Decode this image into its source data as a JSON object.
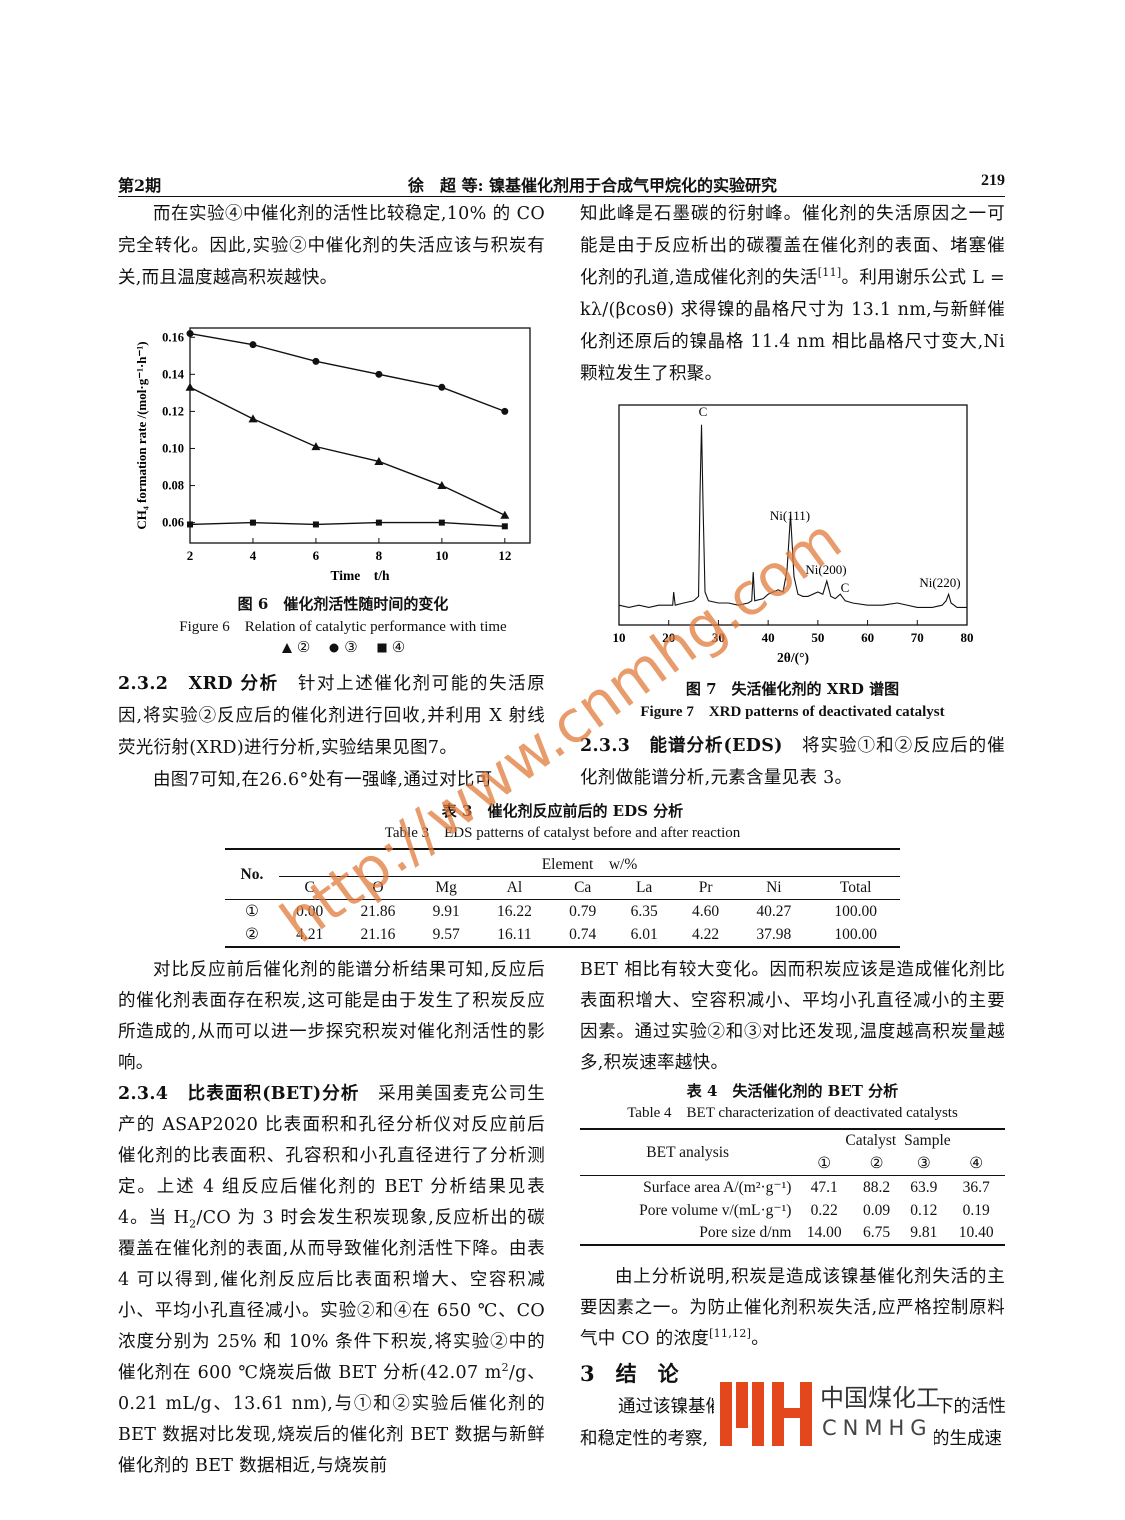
{
  "header": {
    "issue": "第2期",
    "running_title": "徐　超 等: 镍基催化剂用于合成气甲烷化的实验研究",
    "page": "219"
  },
  "text": {
    "left_top": [
      "而在实验④中催化剂的活性比较稳定,10% 的 CO 完全转化。因此,实验②中催化剂的失活应该与积炭有关,而且温度越高积炭越快。"
    ],
    "section_232": [
      {
        "b": "2.3.2　XRD 分析"
      },
      "　针对上述催化剂可能的失活原因,将实验②反应后的催化剂进行回收,并利用 X 射线荧光衍射(XRD)进行分析,实验结果见图7。"
    ],
    "left_fig7_intro": [
      "由图7可知,在26.6°处有一强峰,通过对比可"
    ],
    "right_top": [
      "知此峰是石墨碳的衍射峰。催化剂的失活原因之一可能是由于反应析出的碳覆盖在催化剂的表面、堵塞催化剂的孔道,造成催化剂的失活",
      {
        "sup": "[11]"
      },
      "。利用谢乐公式 L = kλ/(βcosθ) 求得镍的晶格尺寸为 13.1 nm,与新鲜催化剂还原后的镍晶格 11.4 nm 相比晶格尺寸变大,Ni 颗粒发生了积聚。"
    ],
    "section_233": [
      {
        "b": "2.3.3　能谱分析(EDS)"
      },
      "　将实验①和②反应后的催化剂做能谱分析,元素含量见表 3。"
    ],
    "left_bottom_1": [
      "对比反应前后催化剂的能谱分析结果可知,反应后的催化剂表面存在积炭,这可能是由于发生了积炭反应所造成的,从而可以进一步探究积炭对催化剂活性的影响。"
    ],
    "section_234": [
      {
        "b": "2.3.4　比表面积(BET)分析"
      },
      "　采用美国麦克公司生产的 ASAP2020 比表面积和孔径分析仪对反应前后催化剂的比表面积、孔容积和小孔直径进行了分析测定。上述 4 组反应后催化剂的 BET 分析结果见表 4。当 H",
      {
        "sub": "2"
      },
      "/CO 为 3 时会发生积炭现象,反应析出的碳覆盖在催化剂的表面,从而导致催化剂活性下降。由表 4 可以得到,催化剂反应后比表面积增大、空容积减小、平均小孔直径减小。实验②和④在 650 ℃、CO 浓度分别为 25% 和 10% 条件下积炭,将实验②中的催化剂在 600 ℃烧炭后做 BET 分析(42.07 m",
      {
        "sup": "2"
      },
      "/g、0.21 mL/g、13.61 nm),与①和②实验后催化剂的 BET 数据对比发现,烧炭后的催化剂 BET 数据与新鲜催化剂的 BET 数据相近,与烧炭前"
    ],
    "right_bottom_1": [
      "BET 相比有较大变化。因而积炭应该是造成催化剂比表面积增大、空容积减小、平均小孔直径减小的主要因素。通过实验②和③对比还发现,温度越高积炭量越多,积炭速率越快。"
    ],
    "right_bottom_2": [
      "由上分析说明,积炭是造成该镍基催化剂失活的主要因素之一。为防止催化剂积炭失活,应严格控制原料气中 CO 的浓度",
      {
        "sup": "[11,12]"
      },
      "。"
    ]
  },
  "conclusion": {
    "heading": "3　结　论",
    "fragments": [
      "通过该镍基催",
      "下的活性",
      "和稳定性的考察,",
      "的生成速"
    ]
  },
  "table3": {
    "title_cn": "表 3　催化剂反应前后的 EDS 分析",
    "title_en": "Table 3　EDS patterns of catalyst before and after reaction",
    "head": {
      "no": "No.",
      "element": "Element　w/%",
      "columns": [
        "C",
        "O",
        "Mg",
        "Al",
        "Ca",
        "La",
        "Pr",
        "Ni",
        "Total"
      ]
    },
    "rows": [
      {
        "no": "①",
        "values": [
          "0.00",
          "21.86",
          "9.91",
          "16.22",
          "0.79",
          "6.35",
          "4.60",
          "40.27",
          "100.00"
        ]
      },
      {
        "no": "②",
        "values": [
          "4.21",
          "21.16",
          "9.57",
          "16.11",
          "0.74",
          "6.01",
          "4.22",
          "37.98",
          "100.00"
        ]
      }
    ]
  },
  "table4": {
    "title_cn": "表 4　失活催化剂的 BET 分析",
    "title_en": "Table 4　BET characterization of deactivated catalysts",
    "head": {
      "analysis": "BET analysis",
      "catalyst": "Catalyst",
      "sample": "Sample",
      "columns": [
        "①",
        "②",
        "③",
        "④"
      ]
    },
    "rows": [
      {
        "label": "Surface area A/(m²·g⁻¹)",
        "values": [
          "47.1",
          "88.2",
          "63.9",
          "36.7"
        ]
      },
      {
        "label": "Pore volume v/(mL·g⁻¹)",
        "values": [
          "0.22",
          "0.09",
          "0.12",
          "0.19"
        ]
      },
      {
        "label": "Pore size d/nm",
        "values": [
          "14.00",
          "6.75",
          "9.81",
          "10.40"
        ]
      }
    ]
  },
  "watermark": "http://www.cnmhg.com",
  "logo": {
    "cn": "中国煤化工",
    "en": "CNMHG"
  },
  "chart_data": [
    {
      "type": "line",
      "caption_cn": "图 6　催化剂活性随时间的变化",
      "caption_en": "Figure 6　Relation of catalytic performance with time",
      "xlabel": "Time　t/h",
      "ylabel": "CH₄ formation rate /(mol·g⁻¹·h⁻¹)",
      "x": [
        2,
        4,
        6,
        8,
        10,
        12
      ],
      "xlim": [
        2,
        12.8
      ],
      "xticks": [
        2,
        4,
        6,
        8,
        10,
        12
      ],
      "ylim": [
        0.049,
        0.165
      ],
      "yticks": [
        {
          "value": 0.06,
          "label": "0.06"
        },
        {
          "value": 0.08,
          "label": "0.08"
        },
        {
          "value": 0.1,
          "label": "0.10"
        },
        {
          "value": 0.12,
          "label": "0.12"
        },
        {
          "value": 0.14,
          "label": "0.14"
        },
        {
          "value": 0.16,
          "label": "0.16"
        }
      ],
      "series": [
        {
          "name": "②",
          "marker": "triangle",
          "color": "#111111",
          "values": [
            0.133,
            0.116,
            0.101,
            0.093,
            0.08,
            0.064
          ]
        },
        {
          "name": "③",
          "marker": "circle",
          "color": "#111111",
          "values": [
            0.162,
            0.156,
            0.147,
            0.14,
            0.133,
            0.12
          ]
        },
        {
          "name": "④",
          "marker": "square",
          "color": "#111111",
          "values": [
            0.059,
            0.06,
            0.059,
            0.06,
            0.06,
            0.058
          ]
        }
      ]
    },
    {
      "type": "line",
      "caption_cn": "图 7　失活催化剂的 XRD 谱图",
      "caption_en": "Figure 7　XRD patterns of deactivated catalyst",
      "xlabel": "2θ/(°)",
      "x": [
        10,
        12,
        14,
        16,
        18,
        20,
        20.8,
        21,
        21.3,
        23,
        25,
        26,
        26.3,
        26.6,
        26.9,
        27.3,
        28,
        30,
        32,
        34,
        36,
        36.7,
        37,
        37.3,
        39,
        40,
        42,
        43,
        43.8,
        44.5,
        45.2,
        46,
        47,
        48,
        50,
        51,
        51.8,
        52.6,
        53.5,
        54.5,
        55.5,
        57,
        60,
        63,
        66,
        70,
        73,
        75,
        75.8,
        76.3,
        76.8,
        78,
        80
      ],
      "xlim": [
        10,
        80
      ],
      "xticks": [
        10,
        20,
        30,
        40,
        50,
        60,
        70,
        80
      ],
      "ylim": [
        0,
        100
      ],
      "peak_labels": [
        "C",
        "Ni(111)",
        "Ni(200)",
        "C",
        "Ni(220)"
      ],
      "series": [
        {
          "color": "#111111",
          "values": [
            9,
            8,
            9,
            8,
            9,
            9,
            9,
            15,
            9,
            10,
            11,
            13,
            60,
            91,
            55,
            15,
            11,
            10,
            10,
            9,
            10,
            11,
            24,
            11,
            12,
            14,
            16,
            15,
            25,
            50,
            22,
            14,
            13,
            13,
            15,
            14,
            20,
            13,
            12,
            14,
            11,
            10,
            9,
            9,
            10,
            8,
            8,
            9,
            11,
            14,
            10,
            8,
            8
          ]
        }
      ]
    }
  ]
}
